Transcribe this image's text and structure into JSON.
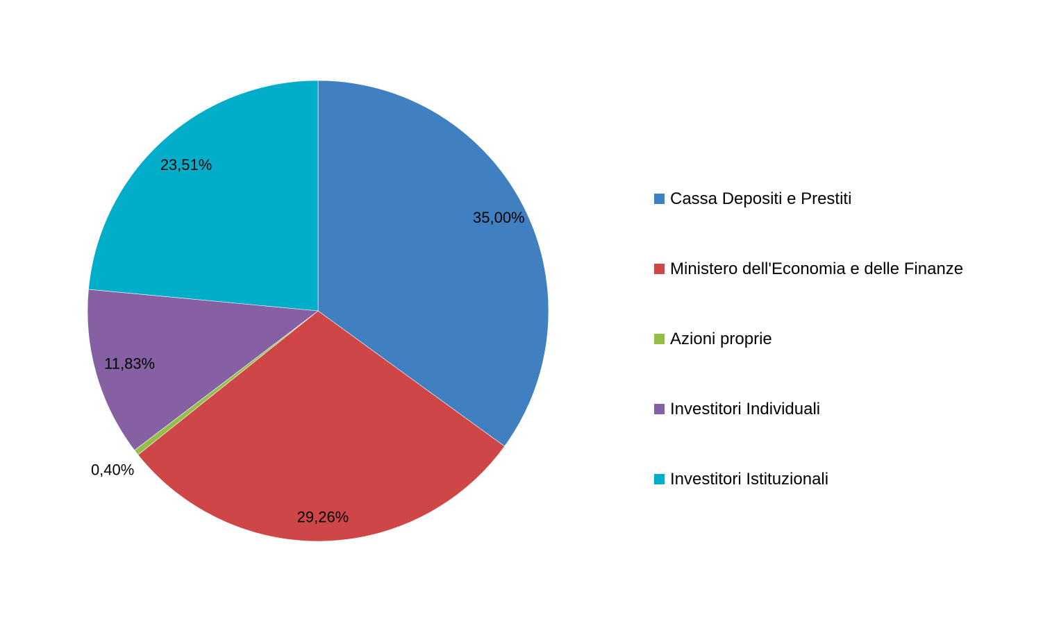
{
  "chart_data": {
    "type": "pie",
    "start_angle_deg": 0,
    "direction": "clockwise",
    "legend_position": "right",
    "slices": [
      {
        "name": "Cassa Depositi e Prestiti",
        "value": 35.0,
        "label": "35,00%",
        "color": "#4080C1"
      },
      {
        "name": "Ministero dell'Economia e delle Finanze",
        "value": 29.26,
        "label": "29,26%",
        "color": "#CF4647"
      },
      {
        "name": "Azioni proprie",
        "value": 0.4,
        "label": "0,40%",
        "color": "#94BE4A"
      },
      {
        "name": "Investitori Individuali",
        "value": 11.83,
        "label": "11,83%",
        "color": "#8561A4"
      },
      {
        "name": "Investitori Istituzionali",
        "value": 23.51,
        "label": "23,51%",
        "color": "#00AECA"
      }
    ]
  }
}
